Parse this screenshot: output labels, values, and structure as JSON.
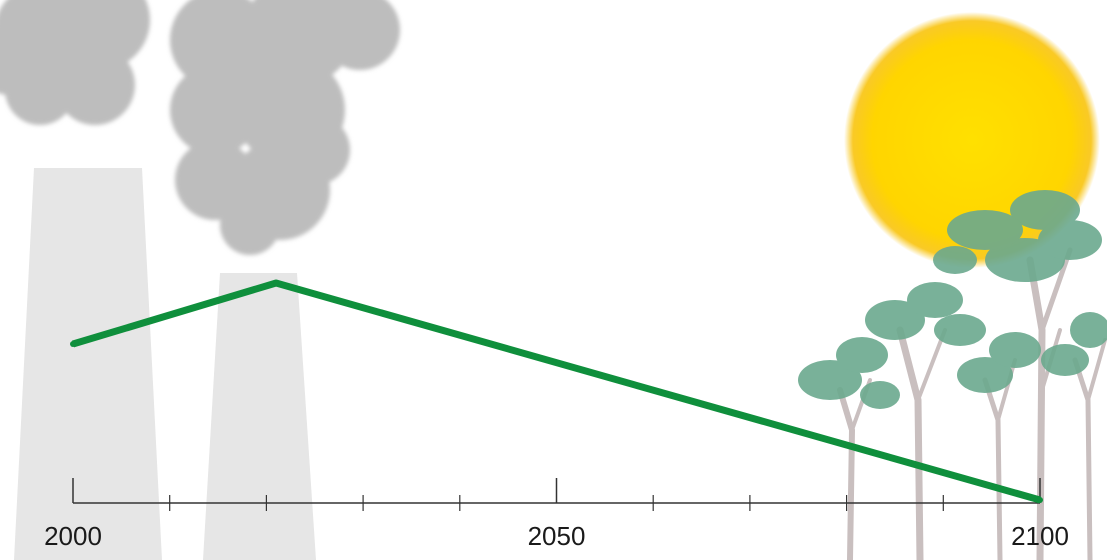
{
  "chart_data": {
    "type": "line",
    "title": "",
    "xlabel": "",
    "ylabel": "",
    "x": [
      2000,
      2021,
      2100
    ],
    "y": [
      0.55,
      1.0,
      -0.6
    ],
    "xlim": [
      2000,
      2100
    ],
    "ylim": [
      -1,
      1.2
    ],
    "major_ticks": [
      2000,
      2050,
      2100
    ],
    "minor_ticks": [
      2010,
      2020,
      2030,
      2040,
      2060,
      2070,
      2080,
      2090
    ],
    "tick_labels": [
      "2000",
      "2050",
      "2100"
    ],
    "grid": false,
    "legend": "none",
    "series": [
      {
        "color": "#0f8f3c"
      }
    ]
  },
  "colors": {
    "line": "#0f8f3c",
    "axis": "#333333",
    "smoke": "#bdbdbd",
    "chimney": "#e6e6e6",
    "sun": "#ffd500",
    "sun_edge": "#f7b500",
    "foliage": "#6ba98e",
    "trunk": "#c9bfbf"
  },
  "illustration": {
    "left": [
      "smoke-cloud-icon",
      "chimney-icon"
    ],
    "right": [
      "sun-icon",
      "tree-icon"
    ]
  }
}
